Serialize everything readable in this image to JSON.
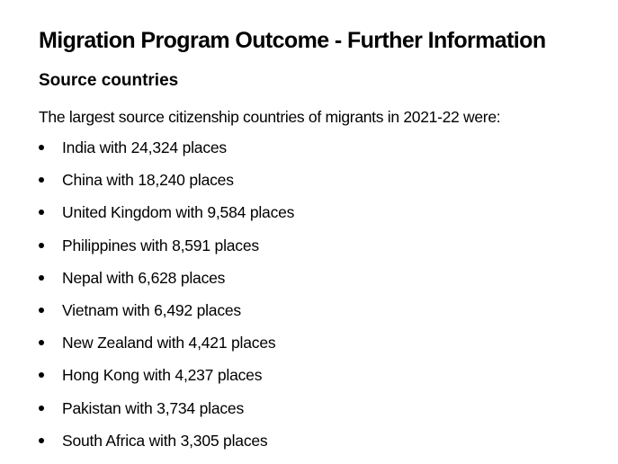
{
  "document": {
    "title": "Migration Program Outcome - Further Information",
    "section_heading": "Source countries",
    "intro": "The largest source citizenship countries of migrants in 2021-22 were:",
    "bullet_icon": "bullet-dot",
    "items": [
      {
        "text": "India with 24,324 places"
      },
      {
        "text": "China with 18,240 places"
      },
      {
        "text": "United Kingdom with 9,584 places"
      },
      {
        "text": "Philippines with 8,591 places"
      },
      {
        "text": "Nepal with 6,628 places"
      },
      {
        "text": "Vietnam with 6,492 places"
      },
      {
        "text": "New Zealand with 4,421 places"
      },
      {
        "text": "Hong Kong with 4,237 places"
      },
      {
        "text": "Pakistan with 3,734 places"
      },
      {
        "text": "South Africa with 3,305 places"
      }
    ]
  }
}
